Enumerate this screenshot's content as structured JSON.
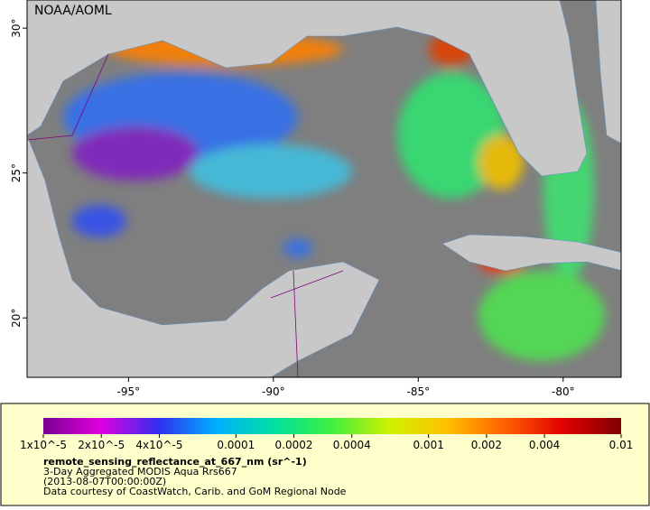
{
  "map": {
    "credit": "NOAA/AOML",
    "xlim": [
      -98.5,
      -78
    ],
    "ylim": [
      17.95,
      30.97
    ],
    "xticks": [
      {
        "value": -95,
        "label": "-95°"
      },
      {
        "value": -90,
        "label": "-90°"
      },
      {
        "value": -85,
        "label": "-85°"
      },
      {
        "value": -80,
        "label": "-80°"
      }
    ],
    "yticks": [
      {
        "value": 20,
        "label": "20°"
      },
      {
        "value": 25,
        "label": "25°"
      },
      {
        "value": 30,
        "label": "30°"
      }
    ]
  },
  "colorbar": {
    "log_scale": true,
    "lim": [
      1e-05,
      0.01
    ],
    "colormap": [
      "#7a0090",
      "#e000e0",
      "#3030f0",
      "#00b0ff",
      "#00e0a0",
      "#40f040",
      "#d0f000",
      "#ffc000",
      "#ff6000",
      "#e00000",
      "#800000"
    ],
    "ticks": [
      {
        "value": 1e-05,
        "label": "1x10^-5"
      },
      {
        "value": 2e-05,
        "label": "2x10^-5"
      },
      {
        "value": 4e-05,
        "label": "4x10^-5"
      },
      {
        "value": 0.0001,
        "label": "0.0001"
      },
      {
        "value": 0.0002,
        "label": "0.0002"
      },
      {
        "value": 0.0004,
        "label": "0.0004"
      },
      {
        "value": 0.001,
        "label": "0.001"
      },
      {
        "value": 0.002,
        "label": "0.002"
      },
      {
        "value": 0.004,
        "label": "0.004"
      },
      {
        "value": 0.01,
        "label": "0.01"
      }
    ]
  },
  "legend": {
    "title": "remote_sensing_reflectance_at_667_nm (sr^-1)",
    "lines": [
      "3-Day Aggregated MODIS Aqua Rrs667",
      "(2013-08-07T00:00:00Z)",
      "Data courtesy of CoastWatch, Carib. and GoM Regional Node"
    ]
  }
}
